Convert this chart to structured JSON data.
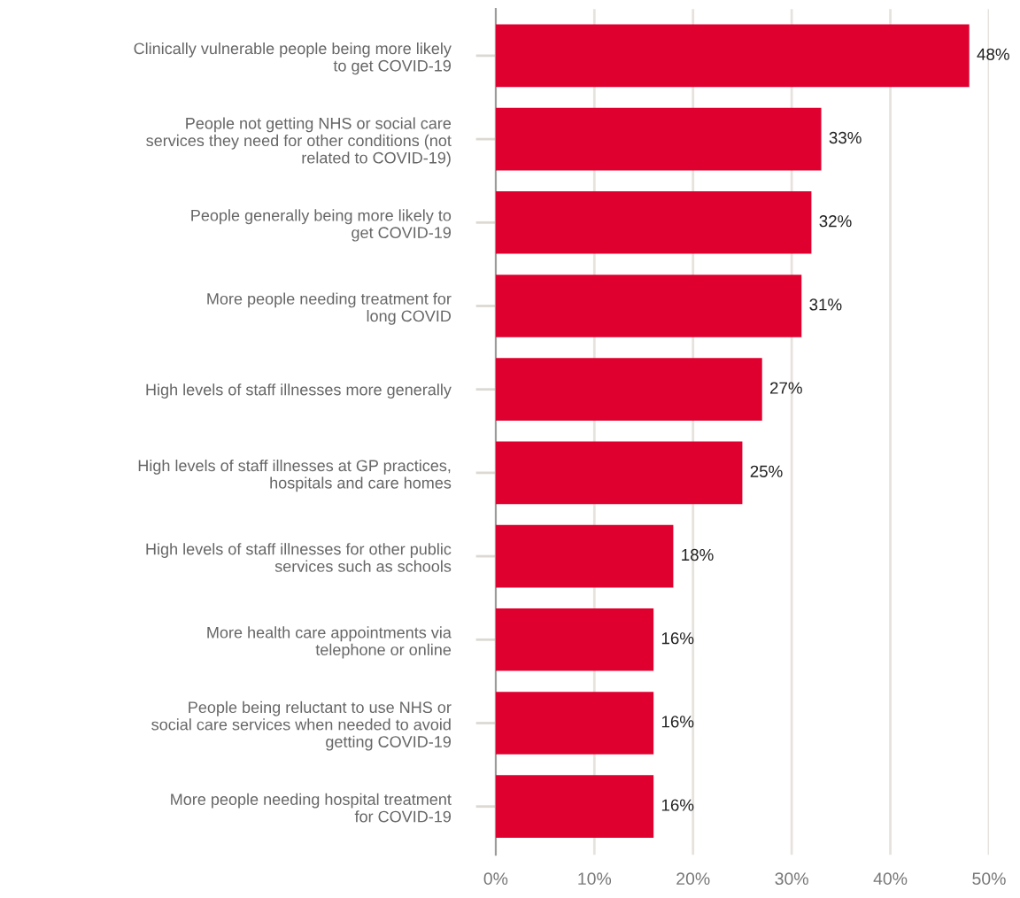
{
  "chart_data": {
    "type": "bar",
    "orientation": "horizontal",
    "categories": [
      "Clinically vulnerable people being more likely\nto get COVID-19",
      "People not getting NHS or social care\nservices they need for other conditions (not\nrelated to COVID-19)",
      "People generally being more likely to\nget COVID-19",
      "More people needing treatment for\nlong COVID",
      "High levels of staff illnesses more generally",
      "High levels of staff illnesses at GP practices,\nhospitals and care homes",
      "High levels of staff illnesses for other public\nservices such as schools",
      "More health care appointments via\ntelephone or online",
      "People being reluctant to use NHS or\nsocial care services when needed to avoid\ngetting COVID-19",
      "More people needing hospital treatment\nfor COVID-19"
    ],
    "values": [
      48,
      33,
      32,
      31,
      27,
      25,
      18,
      16,
      16,
      16
    ],
    "value_labels": [
      "48%",
      "33%",
      "32%",
      "31%",
      "27%",
      "25%",
      "18%",
      "16%",
      "16%",
      "16%"
    ],
    "color": "#df002f",
    "xlim": [
      0,
      50
    ],
    "xticks": [
      {
        "value": 0,
        "label": "0%"
      },
      {
        "value": 10,
        "label": "10%"
      },
      {
        "value": 20,
        "label": "20%"
      },
      {
        "value": 30,
        "label": "30%"
      },
      {
        "value": 40,
        "label": "40%"
      },
      {
        "value": 50,
        "label": "50%"
      }
    ],
    "grid": "x",
    "legend": false
  }
}
